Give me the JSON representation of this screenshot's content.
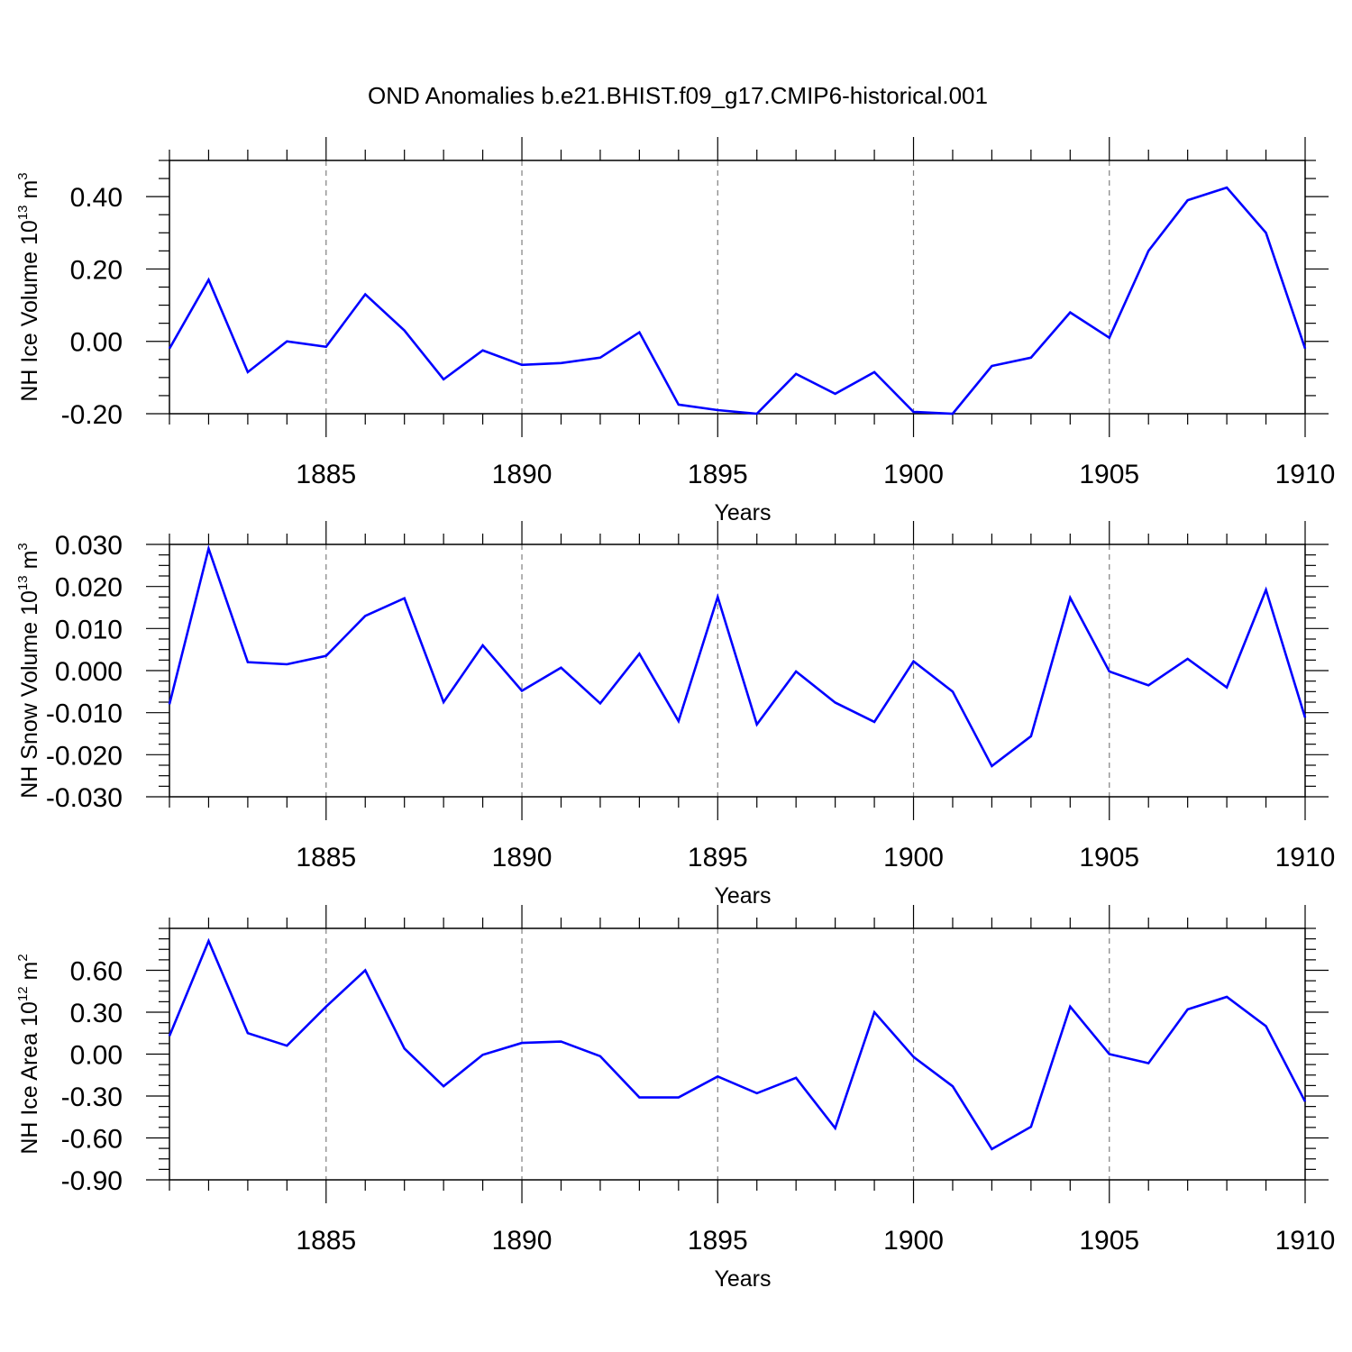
{
  "title": "OND Anomalies b.e21.BHIST.f09_g17.CMIP6-historical.001",
  "colors": {
    "series": "#0000ff",
    "axis": "#000000",
    "grid": "#7f7f7f"
  },
  "chart_data": [
    {
      "type": "line",
      "title": "OND Anomalies b.e21.BHIST.f09_g17.CMIP6-historical.001",
      "xlabel": "Years",
      "ylabel": {
        "main": "NH Ice Volume 10",
        "sup": "13",
        "unit": " m",
        "unit_sup": "3"
      },
      "xlim": [
        1881,
        1910
      ],
      "ylim": [
        -0.2,
        0.5
      ],
      "x_ticks": [
        1885,
        1890,
        1895,
        1900,
        1905,
        1910
      ],
      "y_ticks": [
        -0.2,
        0.0,
        0.2,
        0.4
      ],
      "y_tick_labels": [
        "-0.20",
        "0.00",
        "0.20",
        "0.40"
      ],
      "y_minor_step": 0.05,
      "grid": "vertical dashed at major x ticks",
      "series": [
        {
          "name": "NH Ice Volume",
          "x": [
            1881,
            1882,
            1883,
            1884,
            1885,
            1886,
            1887,
            1888,
            1889,
            1890,
            1891,
            1892,
            1893,
            1894,
            1895,
            1896,
            1897,
            1898,
            1899,
            1900,
            1901,
            1902,
            1903,
            1904,
            1905,
            1906,
            1907,
            1908,
            1909,
            1910
          ],
          "values": [
            -0.02,
            0.17,
            -0.085,
            0.0,
            -0.015,
            0.13,
            0.03,
            -0.105,
            -0.025,
            -0.065,
            -0.06,
            -0.045,
            0.025,
            -0.175,
            -0.19,
            -0.2,
            -0.09,
            -0.145,
            -0.085,
            -0.195,
            -0.2,
            -0.068,
            -0.045,
            0.08,
            0.01,
            0.25,
            0.39,
            0.425,
            0.3,
            -0.02
          ]
        }
      ]
    },
    {
      "type": "line",
      "xlabel": "Years",
      "ylabel": {
        "main": "NH Snow Volume 10",
        "sup": "13",
        "unit": " m",
        "unit_sup": "3"
      },
      "xlim": [
        1881,
        1910
      ],
      "ylim": [
        -0.03,
        0.03
      ],
      "x_ticks": [
        1885,
        1890,
        1895,
        1900,
        1905,
        1910
      ],
      "y_ticks": [
        -0.03,
        -0.02,
        -0.01,
        0.0,
        0.01,
        0.02,
        0.03
      ],
      "y_tick_labels": [
        "-0.030",
        "-0.020",
        "-0.010",
        "0.000",
        "0.010",
        "0.020",
        "0.030"
      ],
      "y_minor_step": 0.0025,
      "grid": "vertical dashed at major x ticks",
      "series": [
        {
          "name": "NH Snow Volume",
          "x": [
            1881,
            1882,
            1883,
            1884,
            1885,
            1886,
            1887,
            1888,
            1889,
            1890,
            1891,
            1892,
            1893,
            1894,
            1895,
            1896,
            1897,
            1898,
            1899,
            1900,
            1901,
            1902,
            1903,
            1904,
            1905,
            1906,
            1907,
            1908,
            1909,
            1910
          ],
          "values": [
            -0.008,
            0.029,
            0.002,
            0.0015,
            0.0035,
            0.013,
            0.0172,
            -0.0075,
            0.006,
            -0.0048,
            0.0007,
            -0.0078,
            0.004,
            -0.012,
            0.0175,
            -0.0128,
            -0.0002,
            -0.0076,
            -0.0122,
            0.0022,
            -0.005,
            -0.0227,
            -0.0156,
            0.0173,
            -0.0002,
            -0.0035,
            0.0028,
            -0.004,
            0.0192,
            -0.0112
          ]
        }
      ]
    },
    {
      "type": "line",
      "xlabel": "Years",
      "ylabel": {
        "main": "NH Ice Area 10",
        "sup": "12",
        "unit": " m",
        "unit_sup": "2"
      },
      "xlim": [
        1881,
        1910
      ],
      "ylim": [
        -0.9,
        0.9
      ],
      "x_ticks": [
        1885,
        1890,
        1895,
        1900,
        1905,
        1910
      ],
      "y_ticks": [
        -0.9,
        -0.6,
        -0.3,
        0.0,
        0.3,
        0.6
      ],
      "y_tick_labels": [
        "-0.90",
        "-0.60",
        "-0.30",
        "0.00",
        "0.30",
        "0.60"
      ],
      "y_minor_step": 0.075,
      "grid": "vertical dashed at major x ticks",
      "series": [
        {
          "name": "NH Ice Area",
          "x": [
            1881,
            1882,
            1883,
            1884,
            1885,
            1886,
            1887,
            1888,
            1889,
            1890,
            1891,
            1892,
            1893,
            1894,
            1895,
            1896,
            1897,
            1898,
            1899,
            1900,
            1901,
            1902,
            1903,
            1904,
            1905,
            1906,
            1907,
            1908,
            1909,
            1910
          ],
          "values": [
            0.13,
            0.81,
            0.15,
            0.06,
            0.34,
            0.6,
            0.04,
            -0.23,
            -0.005,
            0.08,
            0.09,
            -0.015,
            -0.31,
            -0.31,
            -0.16,
            -0.28,
            -0.17,
            -0.53,
            0.3,
            -0.02,
            -0.23,
            -0.68,
            -0.52,
            0.34,
            0.0,
            -0.065,
            0.32,
            0.41,
            0.2,
            -0.34
          ]
        }
      ]
    }
  ]
}
